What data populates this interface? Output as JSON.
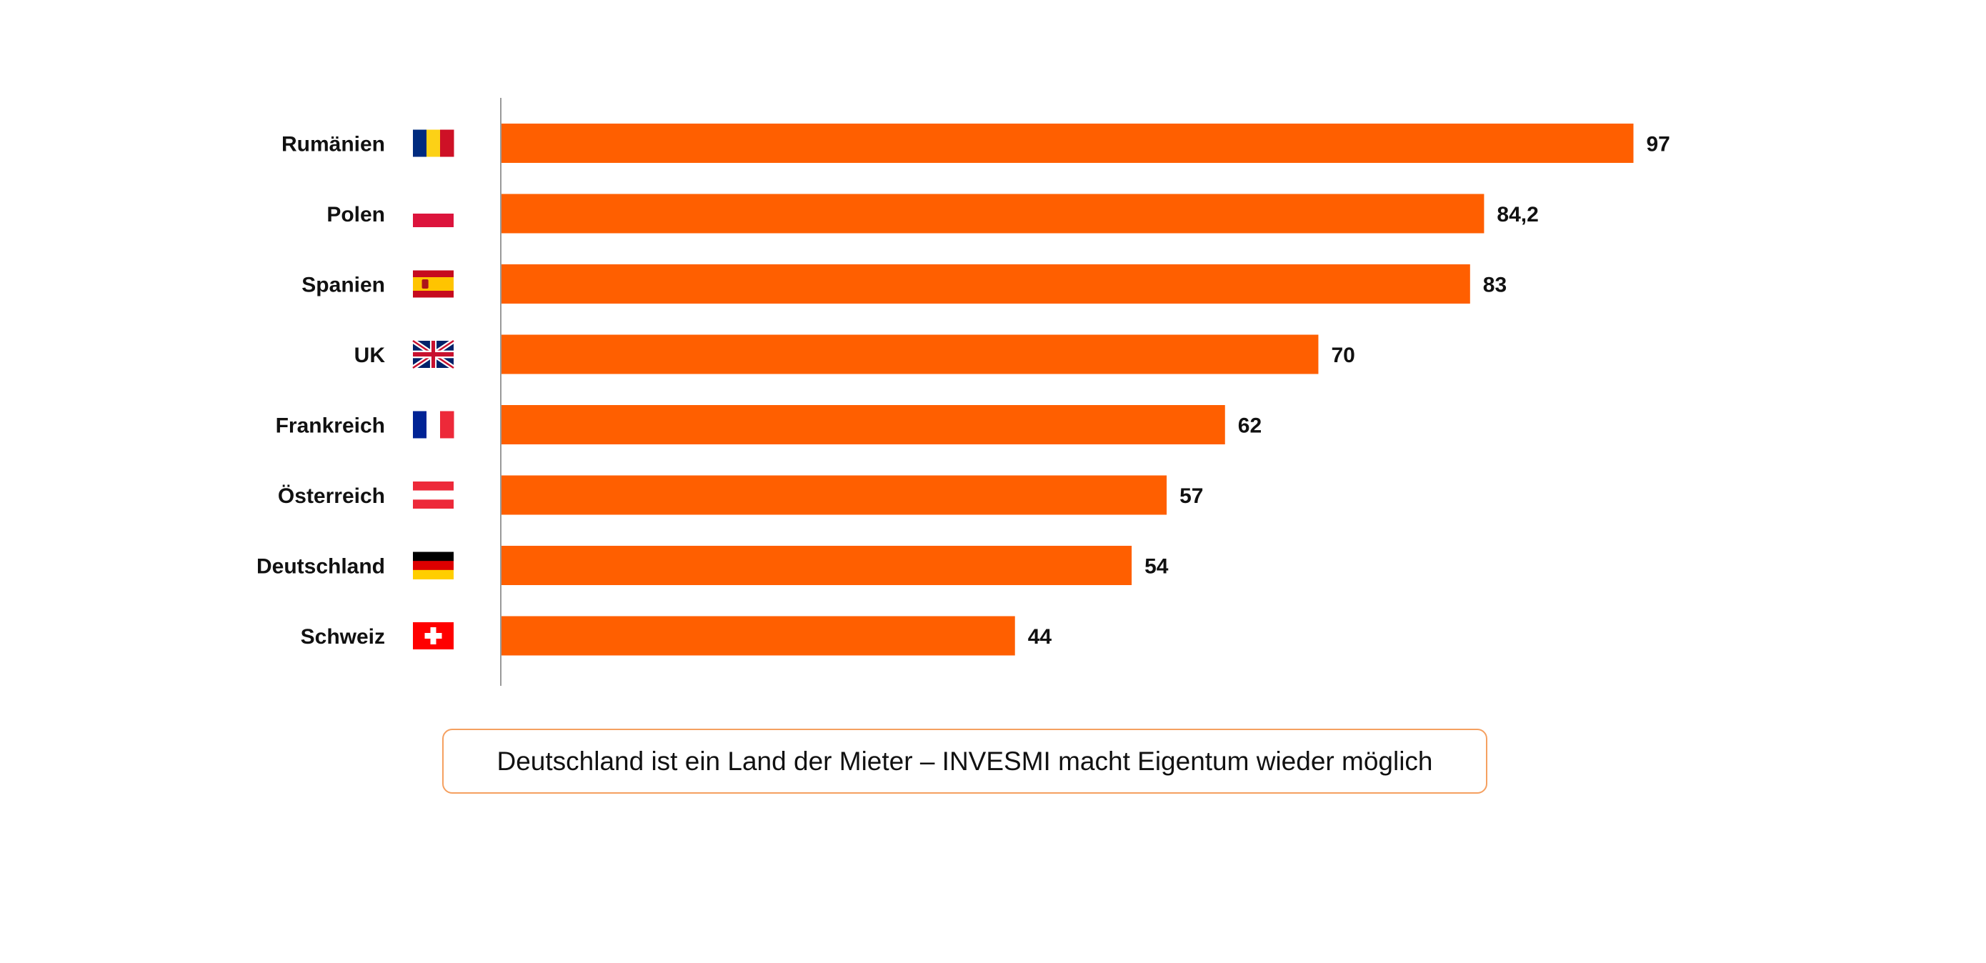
{
  "chart_data": {
    "type": "bar",
    "orientation": "horizontal",
    "categories": [
      "Rumänien",
      "Polen",
      "Spanien",
      "UK",
      "Frankreich",
      "Österreich",
      "Deutschland",
      "Schweiz"
    ],
    "values": [
      97,
      84.2,
      83,
      70,
      62,
      57,
      54,
      44
    ],
    "value_labels": [
      "97",
      "84,2",
      "83",
      "70",
      "62",
      "57",
      "54",
      "44"
    ],
    "flags": [
      "romania-flag",
      "poland-flag",
      "spain-flag",
      "uk-flag",
      "france-flag",
      "austria-flag",
      "germany-flag",
      "switzerland-flag"
    ],
    "bar_color": "#ff5f00",
    "title": "",
    "xlabel": "",
    "ylabel": "",
    "grid": false,
    "legend": "none"
  },
  "caption": {
    "text": "Deutschland ist ein Land der Mieter – INVESMI macht Eigentum wieder möglich",
    "border_color": "#f5a060"
  }
}
